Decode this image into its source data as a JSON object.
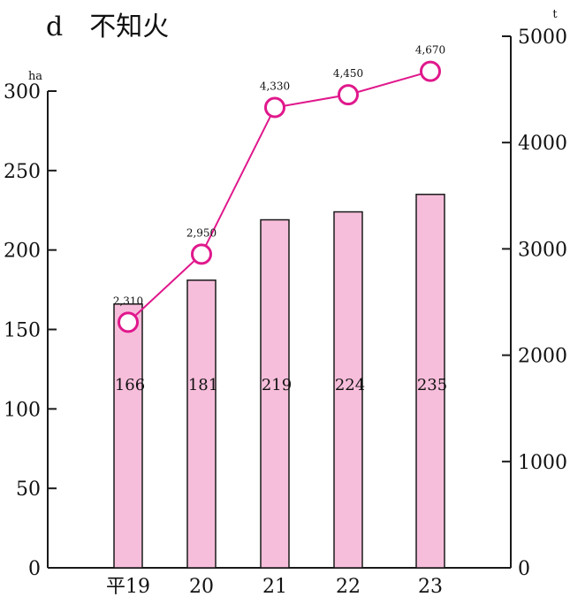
{
  "title": "d　不知火",
  "chart_data": {
    "type": "bar",
    "title": "d　不知火",
    "categories": [
      "平19",
      "20",
      "21",
      "22",
      "23"
    ],
    "series": [
      {
        "name": "",
        "kind": "bar",
        "axis": "left",
        "values": [
          166,
          181,
          219,
          224,
          235
        ]
      },
      {
        "name": "",
        "kind": "line",
        "axis": "right",
        "values": [
          2310,
          2950,
          4330,
          4450,
          4670
        ]
      }
    ],
    "bar_labels": [
      "166",
      "181",
      "219",
      "224",
      "235"
    ],
    "line_labels": [
      "2,310",
      "2,950",
      "4,330",
      "4,450",
      "4,670"
    ],
    "y_left": {
      "unit": "ha",
      "min": 0,
      "max": 300,
      "ticks": [
        "0",
        "50",
        "100",
        "150",
        "200",
        "250",
        "300"
      ]
    },
    "y_right": {
      "unit": "t",
      "min": 0,
      "max": 5000,
      "ticks": [
        "0",
        "1000",
        "2000",
        "3000",
        "4000",
        "5000"
      ]
    },
    "grid": false,
    "colors": {
      "bar_fill": "#f7bedb",
      "bar_stroke": "#1a1a1a",
      "line": "#e0188c",
      "axis": "#1a1a1a"
    }
  }
}
